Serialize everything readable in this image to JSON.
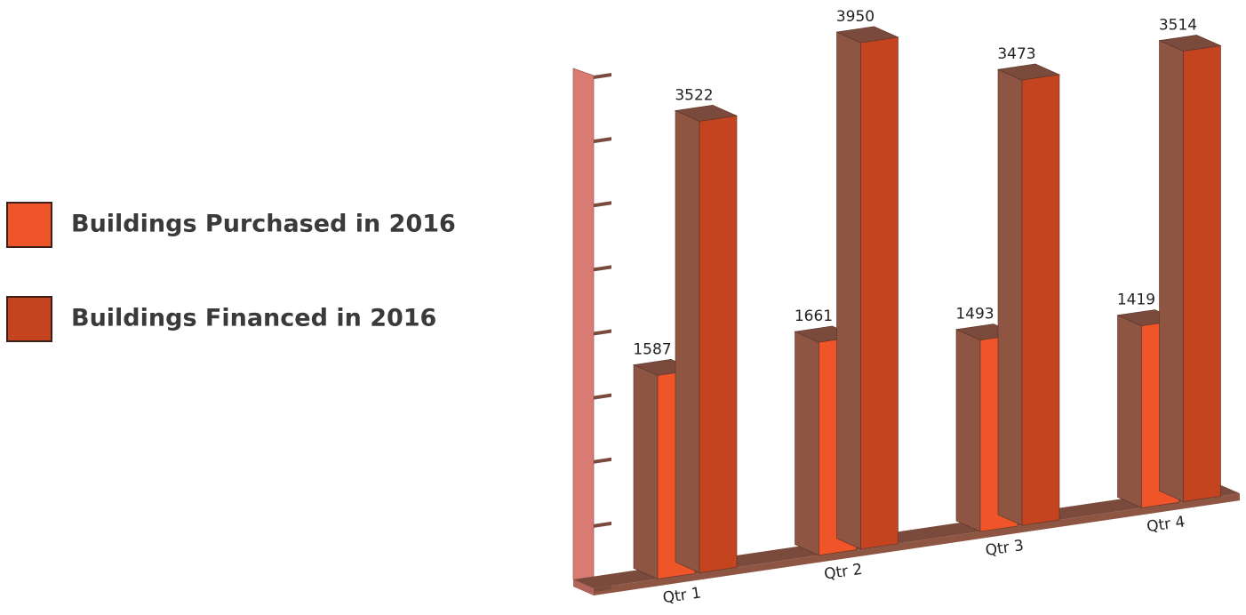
{
  "chart_data": {
    "type": "bar3d",
    "categories": [
      "Qtr 1",
      "Qtr 2",
      "Qtr 3",
      "Qtr 4"
    ],
    "series": [
      {
        "name": "Buildings Purchased in 2016",
        "color": "#f0552a",
        "values": [
          1587,
          1661,
          1493,
          1419
        ]
      },
      {
        "name": "Buildings Financed in 2016",
        "color": "#c4441f",
        "values": [
          3522,
          3950,
          3473,
          3514
        ]
      }
    ],
    "ylim": [
      0,
      4000
    ],
    "yticks": [
      0,
      500,
      1000,
      1500,
      2000,
      2500,
      3000,
      3500,
      4000
    ]
  }
}
